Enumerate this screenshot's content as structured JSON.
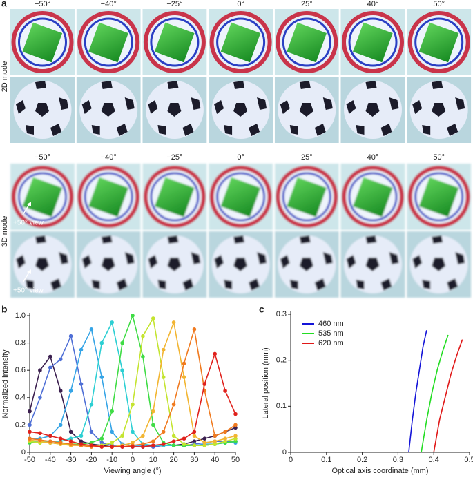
{
  "panel_a": {
    "label": "a",
    "angles": [
      "−50°",
      "−40°",
      "−25°",
      "0°",
      "25°",
      "40°",
      "50°"
    ],
    "rows": [
      "2D mode",
      "3D mode"
    ],
    "annotations": [
      "+50° view",
      "+50° view"
    ]
  },
  "chart_data": [
    {
      "type": "line",
      "panel_label": "b",
      "xlabel": "Viewing angle (°)",
      "ylabel": "Normalized intensity",
      "markers": true,
      "x": [
        -50,
        -45,
        -40,
        -35,
        -30,
        -25,
        -20,
        -15,
        -10,
        -5,
        0,
        5,
        10,
        15,
        20,
        25,
        30,
        35,
        40,
        45,
        50
      ],
      "series": [
        {
          "color": "#3b1f4f",
          "values": [
            0.3,
            0.6,
            0.7,
            0.45,
            0.15,
            0.08,
            0.06,
            0.05,
            0.04,
            0.04,
            0.04,
            0.04,
            0.04,
            0.05,
            0.05,
            0.06,
            0.08,
            0.1,
            0.12,
            0.15,
            0.18
          ]
        },
        {
          "color": "#4f6fd6",
          "values": [
            0.2,
            0.4,
            0.62,
            0.68,
            0.85,
            0.5,
            0.15,
            0.07,
            0.05,
            0.04,
            0.04,
            0.04,
            0.04,
            0.05,
            0.05,
            0.05,
            0.06,
            0.07,
            0.08,
            0.08,
            0.08
          ]
        },
        {
          "color": "#35a4e6",
          "values": [
            0.1,
            0.1,
            0.12,
            0.2,
            0.45,
            0.75,
            0.9,
            0.55,
            0.15,
            0.06,
            0.05,
            0.05,
            0.05,
            0.05,
            0.05,
            0.05,
            0.05,
            0.06,
            0.06,
            0.07,
            0.07
          ]
        },
        {
          "color": "#2ccfd3",
          "values": [
            0.08,
            0.08,
            0.08,
            0.08,
            0.1,
            0.12,
            0.35,
            0.8,
            0.95,
            0.6,
            0.15,
            0.06,
            0.05,
            0.05,
            0.05,
            0.05,
            0.05,
            0.05,
            0.06,
            0.07,
            0.08
          ]
        },
        {
          "color": "#3fdc45",
          "values": [
            0.07,
            0.07,
            0.07,
            0.06,
            0.06,
            0.06,
            0.07,
            0.1,
            0.3,
            0.8,
            1.0,
            0.7,
            0.2,
            0.07,
            0.05,
            0.05,
            0.05,
            0.05,
            0.06,
            0.07,
            0.08
          ]
        },
        {
          "color": "#c4e42f",
          "values": [
            0.08,
            0.07,
            0.07,
            0.06,
            0.06,
            0.05,
            0.05,
            0.05,
            0.07,
            0.12,
            0.35,
            0.85,
            0.98,
            0.55,
            0.12,
            0.06,
            0.05,
            0.05,
            0.06,
            0.08,
            0.1
          ]
        },
        {
          "color": "#f2b531",
          "values": [
            0.09,
            0.08,
            0.07,
            0.06,
            0.05,
            0.05,
            0.04,
            0.04,
            0.04,
            0.05,
            0.07,
            0.12,
            0.3,
            0.75,
            0.95,
            0.55,
            0.12,
            0.07,
            0.08,
            0.1,
            0.12
          ]
        },
        {
          "color": "#f07a1f",
          "values": [
            0.1,
            0.09,
            0.08,
            0.07,
            0.06,
            0.05,
            0.04,
            0.04,
            0.04,
            0.04,
            0.05,
            0.06,
            0.08,
            0.15,
            0.35,
            0.65,
            0.9,
            0.45,
            0.12,
            0.15,
            0.2
          ]
        },
        {
          "color": "#e0211c",
          "values": [
            0.15,
            0.14,
            0.12,
            0.1,
            0.08,
            0.06,
            0.05,
            0.04,
            0.04,
            0.04,
            0.04,
            0.04,
            0.05,
            0.06,
            0.08,
            0.1,
            0.15,
            0.5,
            0.72,
            0.45,
            0.28
          ]
        }
      ],
      "xlim": [
        -50,
        50
      ],
      "xticks": [
        -50,
        -40,
        -30,
        -20,
        -10,
        0,
        10,
        20,
        30,
        40,
        50
      ],
      "ylim": [
        0,
        1
      ],
      "yticks": [
        0,
        0.2,
        0.4,
        0.6,
        0.8,
        {
          "value": 1,
          "label": "1.0"
        }
      ]
    },
    {
      "type": "line",
      "panel_label": "c",
      "xlabel": "Optical axis coordinate (mm)",
      "ylabel": "Lateral position (mm)",
      "markers": false,
      "legend": "upper left",
      "series": [
        {
          "name": "460 nm",
          "color": "#1414d8",
          "x": [
            0.33,
            0.34,
            0.35,
            0.36,
            0.37,
            0.38
          ],
          "values": [
            0,
            0.07,
            0.13,
            0.18,
            0.23,
            0.265
          ]
        },
        {
          "name": "535 nm",
          "color": "#22dd22",
          "x": [
            0.365,
            0.38,
            0.395,
            0.41,
            0.425,
            0.44
          ],
          "values": [
            0,
            0.07,
            0.13,
            0.18,
            0.22,
            0.255
          ]
        },
        {
          "name": "620 nm",
          "color": "#e01818",
          "x": [
            0.4,
            0.416,
            0.432,
            0.448,
            0.464,
            0.48
          ],
          "values": [
            0,
            0.07,
            0.12,
            0.17,
            0.21,
            0.245
          ]
        }
      ],
      "xlim": [
        0,
        0.5
      ],
      "xticks": [
        0,
        0.1,
        0.2,
        0.3,
        0.4,
        0.5
      ],
      "ylim": [
        0,
        0.3
      ],
      "yticks": [
        0,
        0.1,
        0.2,
        0.3
      ]
    }
  ]
}
